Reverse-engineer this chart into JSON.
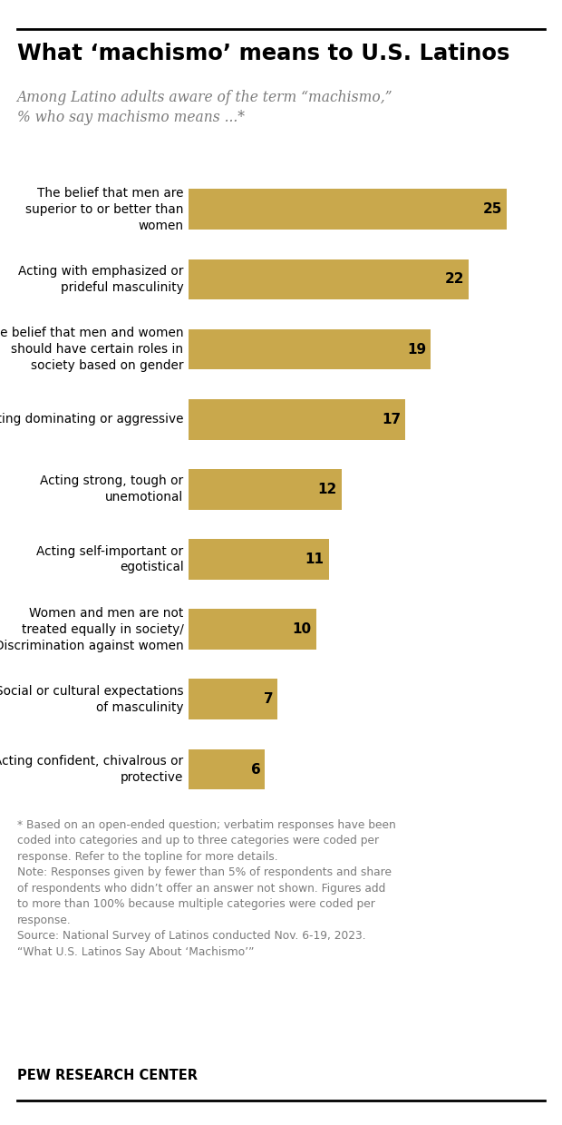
{
  "title": "What ‘machismo’ means to U.S. Latinos",
  "subtitle": "Among Latino adults aware of the term “machismo,”\n% who say machismo means ...*",
  "categories": [
    "The belief that men are\nsuperior to or better than\nwomen",
    "Acting with emphasized or\nprideful masculinity",
    "The belief that men and women\nshould have certain roles in\nsociety based on gender",
    "Acting dominating or aggressive",
    "Acting strong, tough or\nunemotional",
    "Acting self-important or\negotistical",
    "Women and men are not\ntreated equally in society/\nDiscrimination against women",
    "Social or cultural expectations\nof masculinity",
    "Acting confident, chivalrous or\nprotective"
  ],
  "values": [
    25,
    22,
    19,
    17,
    12,
    11,
    10,
    7,
    6
  ],
  "bar_color": "#C9A84C",
  "background_color": "#FFFFFF",
  "footnote1": "* Based on an open-ended question; verbatim responses have been\ncoded into categories and up to three categories were coded per\nresponse. Refer to the topline for more details.",
  "footnote2": "Note: Responses given by fewer than 5% of respondents and share\nof respondents who didn’t offer an answer not shown. Figures add\nto more than 100% because multiple categories were coded per\nresponse.",
  "footnote3": "Source: National Survey of Latinos conducted Nov. 6-19, 2023.\n“What U.S. Latinos Say About ‘Machismo’”",
  "footer": "PEW RESEARCH CENTER",
  "xlim_max": 28,
  "value_label_color": "#000000",
  "title_color": "#000000",
  "subtitle_color": "#7B7B7B",
  "label_color": "#000000",
  "footnote_color": "#7B7B7B"
}
